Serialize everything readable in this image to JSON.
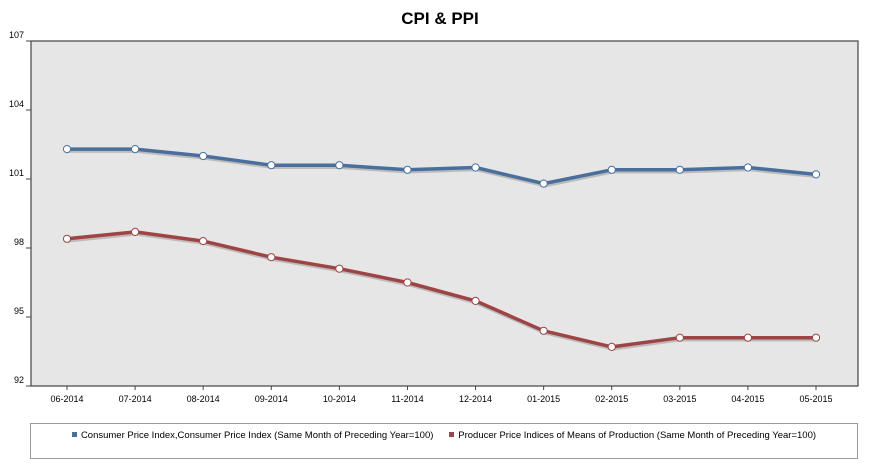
{
  "chart_data": {
    "type": "line",
    "title": "CPI & PPI",
    "categories": [
      "06-2014",
      "07-2014",
      "08-2014",
      "09-2014",
      "10-2014",
      "11-2014",
      "12-2014",
      "01-2015",
      "02-2015",
      "03-2015",
      "04-2015",
      "05-2015"
    ],
    "ylim": [
      92,
      107
    ],
    "yticks": [
      92,
      95,
      98,
      101,
      104,
      107
    ],
    "grid": false,
    "legend_position": "bottom",
    "series": [
      {
        "name": "Consumer Price Index,Consumer Price Index (Same Month of Preceding Year=100)",
        "color": "#4a6f9c",
        "values": [
          102.3,
          102.3,
          102.0,
          101.6,
          101.6,
          101.4,
          101.5,
          100.8,
          101.4,
          101.4,
          101.5,
          101.2
        ]
      },
      {
        "name": "Producer Price Indices of Means of Production (Same Month of Preceding Year=100)",
        "color": "#9e4444",
        "values": [
          98.4,
          98.7,
          98.3,
          97.6,
          97.1,
          96.5,
          95.7,
          94.4,
          93.7,
          94.1,
          94.1,
          94.1
        ]
      }
    ]
  }
}
